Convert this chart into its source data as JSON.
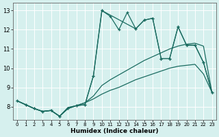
{
  "xlabel": "Humidex (Indice chaleur)",
  "xlim": [
    -0.5,
    23.5
  ],
  "ylim": [
    7.3,
    13.4
  ],
  "xticks": [
    0,
    1,
    2,
    3,
    4,
    5,
    6,
    7,
    8,
    9,
    10,
    11,
    12,
    13,
    14,
    15,
    16,
    17,
    18,
    19,
    20,
    21,
    22,
    23
  ],
  "yticks": [
    8,
    9,
    10,
    11,
    12,
    13
  ],
  "background_color": "#d6f0ee",
  "grid_color": "#ffffff",
  "line_color": "#1a6b60",
  "line1_x": [
    0,
    1,
    2,
    3,
    4,
    5,
    6,
    7,
    8,
    9,
    10,
    11,
    12,
    13,
    14,
    15,
    16,
    17,
    18,
    19,
    20,
    21,
    22,
    23
  ],
  "line1_y": [
    8.3,
    8.1,
    7.9,
    7.75,
    7.8,
    7.5,
    7.9,
    8.05,
    8.1,
    9.6,
    13.0,
    12.7,
    12.0,
    12.9,
    12.05,
    12.5,
    12.6,
    10.5,
    10.5,
    12.15,
    11.2,
    11.2,
    10.3,
    8.75
  ],
  "line2_x": [
    0,
    1,
    2,
    3,
    4,
    5,
    6,
    7,
    8,
    9,
    10,
    14,
    15,
    16,
    17,
    18,
    19,
    20,
    21,
    22,
    23
  ],
  "line2_y": [
    8.3,
    8.1,
    7.9,
    7.75,
    7.8,
    7.5,
    7.9,
    8.05,
    8.1,
    9.6,
    13.0,
    12.05,
    12.5,
    12.6,
    10.5,
    10.5,
    12.15,
    11.2,
    11.2,
    10.3,
    8.75
  ],
  "smooth1_x": [
    0,
    1,
    2,
    3,
    4,
    5,
    6,
    7,
    8,
    9,
    10,
    11,
    12,
    13,
    14,
    15,
    16,
    17,
    18,
    19,
    20,
    21,
    22,
    23
  ],
  "smooth1_y": [
    8.3,
    8.1,
    7.9,
    7.75,
    7.8,
    7.5,
    7.95,
    8.05,
    8.2,
    8.55,
    9.1,
    9.4,
    9.65,
    9.9,
    10.15,
    10.4,
    10.6,
    10.8,
    11.0,
    11.15,
    11.25,
    11.3,
    11.15,
    8.75
  ],
  "smooth2_x": [
    0,
    1,
    2,
    3,
    4,
    5,
    6,
    7,
    8,
    9,
    10,
    11,
    12,
    13,
    14,
    15,
    16,
    17,
    18,
    19,
    20,
    21,
    22,
    23
  ],
  "smooth2_y": [
    8.3,
    8.1,
    7.9,
    7.75,
    7.8,
    7.5,
    7.95,
    8.05,
    8.2,
    8.4,
    8.65,
    8.85,
    9.0,
    9.2,
    9.4,
    9.55,
    9.7,
    9.85,
    10.0,
    10.1,
    10.15,
    10.2,
    9.7,
    8.75
  ]
}
